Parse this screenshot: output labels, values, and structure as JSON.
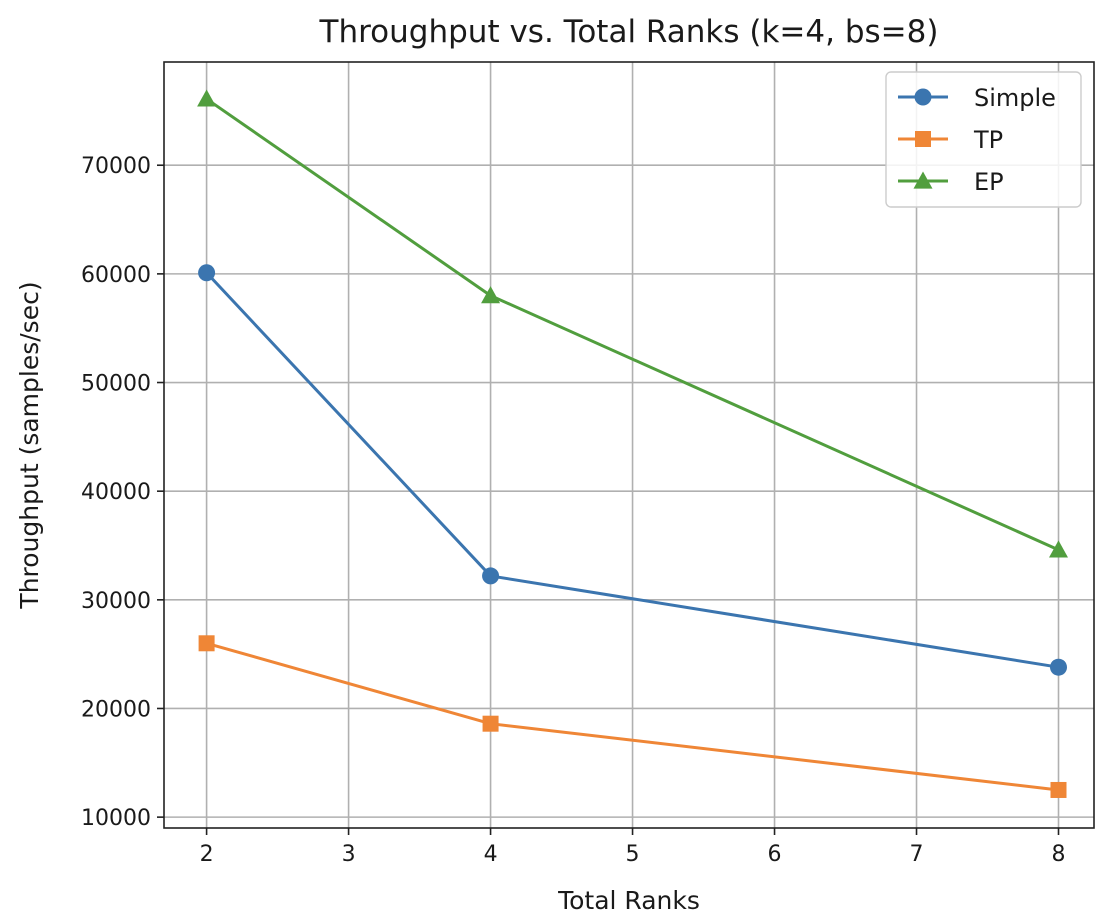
{
  "chart_data": {
    "type": "line",
    "title": "Throughput vs. Total Ranks (k=4, bs=8)",
    "xlabel": "Total Ranks",
    "ylabel": "Throughput (samples/sec)",
    "xlim": [
      1.7,
      8.25
    ],
    "ylim": [
      9000,
      79500
    ],
    "xticks": [
      2,
      3,
      4,
      5,
      6,
      7,
      8
    ],
    "yticks": [
      10000,
      20000,
      30000,
      40000,
      50000,
      60000,
      70000
    ],
    "grid": true,
    "legend_position": "top-right",
    "series": [
      {
        "name": "Simple",
        "marker": "circle",
        "color": "#3b75af",
        "x": [
          2,
          4,
          8
        ],
        "values": [
          60100,
          32200,
          23800
        ]
      },
      {
        "name": "TP",
        "marker": "square",
        "color": "#ef8636",
        "x": [
          2,
          4,
          8
        ],
        "values": [
          26000,
          18600,
          12500
        ]
      },
      {
        "name": "EP",
        "marker": "triangle",
        "color": "#519e3e",
        "x": [
          2,
          4,
          8
        ],
        "values": [
          76100,
          58000,
          34600
        ]
      }
    ]
  }
}
